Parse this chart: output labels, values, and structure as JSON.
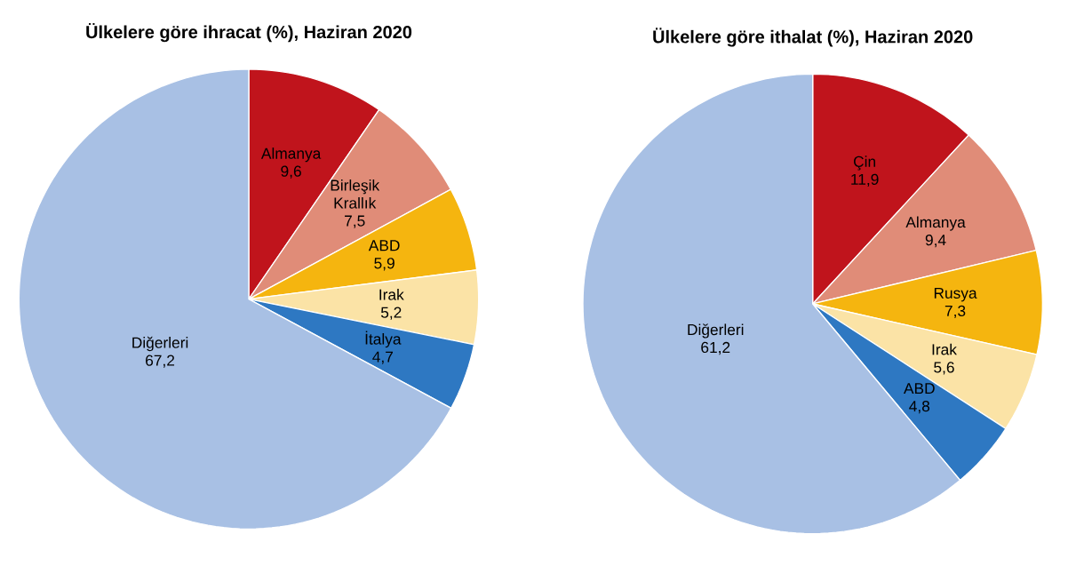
{
  "chart_data": [
    {
      "type": "pie",
      "title": "Ülkelere göre ihracat (%), Haziran 2020",
      "categories": [
        "Almanya",
        "Birleşik Krallık",
        "ABD",
        "Irak",
        "İtalya",
        "Diğerleri"
      ],
      "values": [
        9.6,
        7.5,
        5.9,
        5.2,
        4.7,
        67.2
      ],
      "value_labels": [
        "9,6",
        "7,5",
        "5,9",
        "5,2",
        "4,7",
        "67,2"
      ],
      "colors": [
        "#c0141c",
        "#e08c78",
        "#f5b50f",
        "#fbe3a6",
        "#2e78c2",
        "#a8c0e4"
      ]
    },
    {
      "type": "pie",
      "title": "Ülkelere göre ithalat (%), Haziran 2020",
      "categories": [
        "Çin",
        "Almanya",
        "Rusya",
        "Irak",
        "ABD",
        "Diğerleri"
      ],
      "values": [
        11.9,
        9.4,
        7.3,
        5.6,
        4.8,
        61.2
      ],
      "value_labels": [
        "11,9",
        "9,4",
        "7,3",
        "5,6",
        "4,8",
        "61,2"
      ],
      "colors": [
        "#c0141c",
        "#e08c78",
        "#f5b50f",
        "#fbe3a6",
        "#2e78c2",
        "#a8c0e4"
      ]
    }
  ]
}
